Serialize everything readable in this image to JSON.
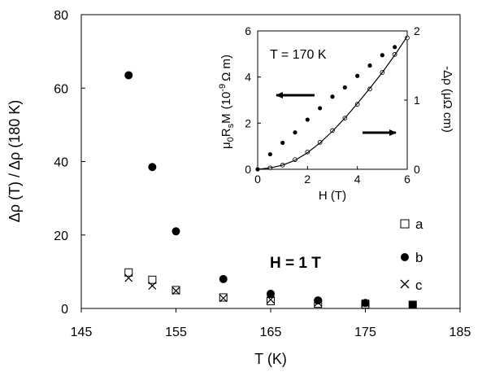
{
  "chart_data": [
    {
      "type": "scatter",
      "title": "",
      "xlabel": "T (K)",
      "ylabel": "Δρ (T) / Δρ (180 K)",
      "xlim": [
        145,
        185
      ],
      "ylim": [
        0,
        80
      ],
      "xticks": [
        "145",
        "155",
        "165",
        "175",
        "185"
      ],
      "yticks": [
        "0",
        "20",
        "40",
        "60",
        "80"
      ],
      "annotation": "H = 1 T",
      "series": [
        {
          "name": "a",
          "marker": "square-open",
          "x": [
            150,
            152.5,
            155,
            160,
            165,
            170,
            175,
            180
          ],
          "y": [
            9.8,
            7.8,
            5.0,
            3.0,
            2.0,
            1.3,
            1.1,
            1.0
          ]
        },
        {
          "name": "b",
          "marker": "circle-filled",
          "x": [
            150,
            152.5,
            155,
            160,
            165,
            170,
            175,
            180
          ],
          "y": [
            63.5,
            38.5,
            21.0,
            8.0,
            4.0,
            2.2,
            1.5,
            1.0
          ]
        },
        {
          "name": "c",
          "marker": "cross",
          "x": [
            150,
            152.5,
            155,
            160,
            165,
            170,
            175,
            180
          ],
          "y": [
            8.3,
            6.2,
            4.8,
            2.8,
            2.4,
            1.6,
            1.4,
            1.0
          ]
        }
      ],
      "legend_position": "bottom-right"
    },
    {
      "type": "scatter",
      "title": "",
      "annotation": "T = 170 K",
      "xlabel": "H (T)",
      "ylabel_left": "μ0RsM (10⁻⁹ Ω m)",
      "ylabel_left_parts": {
        "mu": "μ",
        "sub0": "0",
        "r": "R",
        "subs": "s",
        "m": "M",
        "open": "(10",
        "exp": "-9",
        "unit": "Ω m)"
      },
      "ylabel_right": "-Δρ (μΩ cm)",
      "xlim": [
        0,
        6
      ],
      "ylim_left": [
        0,
        6
      ],
      "ylim_right": [
        0,
        2
      ],
      "xticks": [
        "0",
        "2",
        "4",
        "6"
      ],
      "yticks_left": [
        "0",
        "2",
        "4",
        "6"
      ],
      "yticks_right": [
        "0",
        "1",
        "2"
      ],
      "series": [
        {
          "axis": "left",
          "marker": "circle-filled",
          "x": [
            0,
            0.5,
            1.0,
            1.5,
            2.0,
            2.5,
            3.0,
            3.5,
            4.0,
            4.5,
            5.0,
            5.5,
            6.0
          ],
          "y": [
            0,
            0.65,
            1.15,
            1.6,
            2.15,
            2.65,
            3.15,
            3.55,
            4.05,
            4.5,
            4.95,
            5.3,
            5.7
          ]
        },
        {
          "axis": "right",
          "marker": "circle-open",
          "x": [
            0.5,
            1.0,
            1.5,
            2.0,
            2.5,
            3.0,
            3.5,
            4.0,
            4.5,
            5.0,
            5.5,
            6.0
          ],
          "y": [
            0.02,
            0.06,
            0.14,
            0.25,
            0.39,
            0.56,
            0.74,
            0.94,
            1.16,
            1.4,
            1.66,
            1.9
          ]
        },
        {
          "axis": "right",
          "style": "line",
          "x": [
            0,
            0.5,
            1.0,
            1.5,
            2.0,
            2.5,
            3.0,
            3.5,
            4.0,
            4.5,
            5.0,
            5.5,
            6.0
          ],
          "y": [
            0,
            0.02,
            0.06,
            0.13,
            0.24,
            0.38,
            0.55,
            0.74,
            0.95,
            1.17,
            1.4,
            1.65,
            1.92
          ]
        }
      ],
      "arrows": [
        {
          "points_to": "left-axis"
        },
        {
          "points_to": "right-axis"
        }
      ]
    }
  ],
  "colors": {
    "ink": "#000000",
    "background": "#ffffff"
  }
}
